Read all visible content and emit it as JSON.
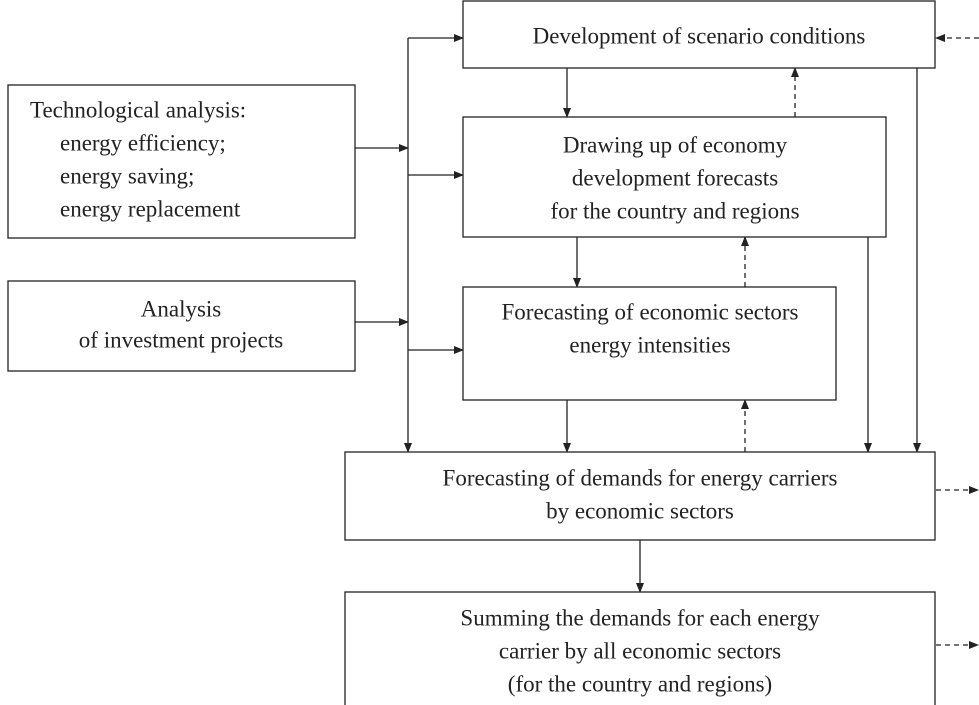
{
  "nodes": [
    {
      "lines": [
        "Development of scenario conditions"
      ]
    },
    {
      "lines": [
        "Technological analysis:",
        "energy efficiency;",
        "energy saving;",
        "energy replacement"
      ]
    },
    {
      "lines": [
        "Drawing up of economy",
        "development forecasts",
        "for the country and regions"
      ]
    },
    {
      "lines": [
        "Analysis",
        "of investment projects"
      ]
    },
    {
      "lines": [
        "Forecasting of economic sectors",
        "energy intensities"
      ]
    },
    {
      "lines": [
        "Forecasting of demands for energy carriers",
        "by economic sectors"
      ]
    },
    {
      "lines": [
        "Summing the demands for each energy",
        "carrier by all economic sectors",
        "(for the country and regions)"
      ]
    }
  ]
}
